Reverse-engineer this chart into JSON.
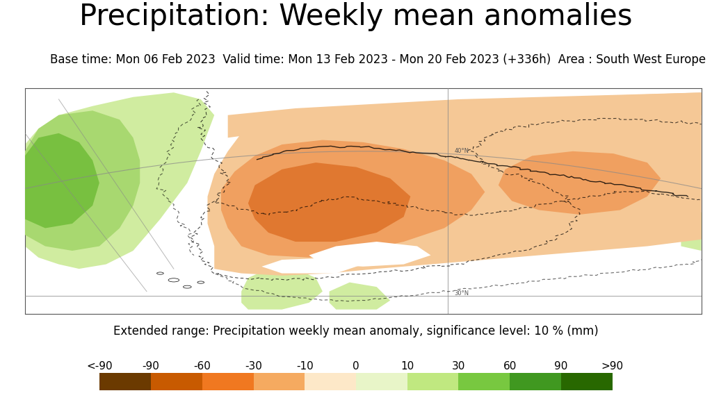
{
  "title": "Precipitation: Weekly mean anomalies",
  "subtitle": "Base time: Mon 06 Feb 2023  Valid time: Mon 13 Feb 2023 - Mon 20 Feb 2023 (+336h)  Area : South West Europe",
  "colorbar_label": "Extended range: Precipitation weekly mean anomaly, significance level: 10 % (mm)",
  "colorbar_ticks": [
    "<-90",
    "-90",
    "-60",
    "-30",
    "-10",
    "0",
    "10",
    "30",
    "60",
    "90",
    ">90"
  ],
  "colorbar_colors": [
    "#6b3a00",
    "#c85a00",
    "#f07820",
    "#f5aa60",
    "#fde8c8",
    "#e8f5c8",
    "#c0e880",
    "#78c840",
    "#409820",
    "#286800"
  ],
  "background_color": "#ffffff",
  "title_fontsize": 30,
  "subtitle_fontsize": 12,
  "colorbar_label_fontsize": 12,
  "colorbar_tick_fontsize": 11,
  "map_bg": "#ffffff",
  "orange_light": "#f5c896",
  "orange_mid": "#f0a060",
  "orange_dark": "#e07830",
  "green_light": "#d0eca0",
  "green_mid": "#a8d870",
  "green_dark": "#78c040"
}
